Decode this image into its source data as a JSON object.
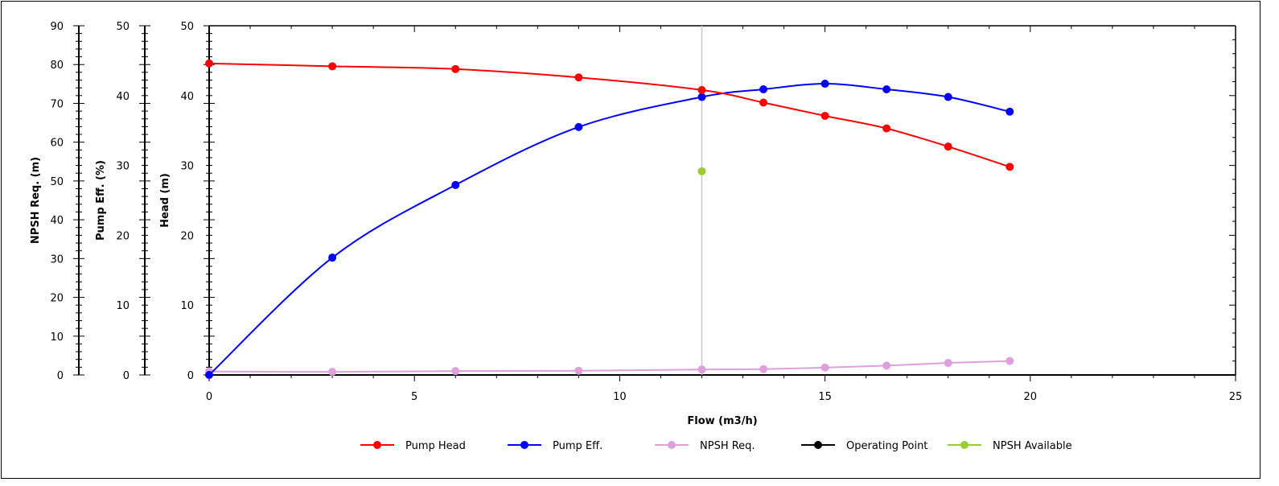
{
  "chart_data": {
    "type": "line",
    "xlabel": "Flow (m3/h)",
    "xlim": [
      0,
      25
    ],
    "x_ticks": [
      0,
      5,
      10,
      15,
      20,
      25
    ],
    "grid": false,
    "legend_position": "bottom",
    "axes": [
      {
        "id": "npsh",
        "label": "NPSH Req. (m)",
        "ylim": [
          0,
          90
        ],
        "ticks": [
          0,
          10,
          20,
          30,
          40,
          50,
          60,
          70,
          80,
          90
        ]
      },
      {
        "id": "eff",
        "label": "Pump Eff. (%)",
        "ylim": [
          0,
          50
        ],
        "ticks": [
          0,
          10,
          20,
          30,
          40,
          50
        ]
      },
      {
        "id": "head",
        "label": "Head (m)",
        "ylim": [
          0,
          50
        ],
        "ticks": [
          0,
          10,
          20,
          30,
          40,
          50
        ]
      }
    ],
    "series": [
      {
        "name": "Pump Head",
        "axis": "head",
        "color": "#ff0000",
        "x": [
          0,
          3,
          6,
          9,
          12,
          13.5,
          15,
          16.5,
          18,
          19.5
        ],
        "y": [
          44.6,
          44.2,
          43.8,
          42.6,
          40.8,
          39.0,
          37.1,
          35.3,
          32.7,
          29.8
        ]
      },
      {
        "name": "Pump Eff.",
        "axis": "eff",
        "color": "#0000ff",
        "x": [
          0,
          3,
          6,
          9,
          12,
          13.5,
          15,
          16.5,
          18,
          19.5
        ],
        "y": [
          0,
          16.8,
          27.2,
          35.5,
          39.8,
          40.9,
          41.7,
          40.9,
          39.8,
          37.7
        ]
      },
      {
        "name": "NPSH Req.",
        "axis": "npsh",
        "color": "#dda0dd",
        "x": [
          0,
          3,
          6,
          9,
          12,
          13.5,
          15,
          16.5,
          18,
          19.5
        ],
        "y": [
          0.9,
          0.8,
          1.0,
          1.1,
          1.4,
          1.5,
          1.9,
          2.4,
          3.1,
          3.6
        ]
      },
      {
        "name": "Operating Point",
        "axis": "head",
        "color": "#000000",
        "x": [
          12,
          12
        ],
        "y": [
          0,
          50
        ],
        "line_color": "#c8c8c8",
        "markers": false
      },
      {
        "name": "NPSH Available",
        "axis": "npsh",
        "color": "#9acd32",
        "x": [
          12
        ],
        "y": [
          52.5
        ],
        "line": false
      }
    ]
  }
}
